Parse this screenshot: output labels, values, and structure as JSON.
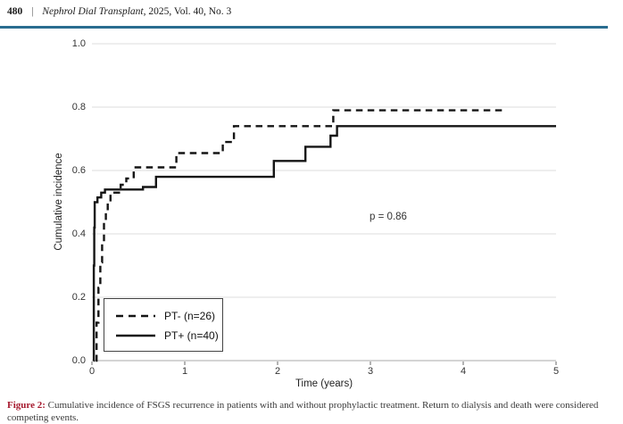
{
  "header": {
    "page_number": "480",
    "separator": "|",
    "journal_title": "Nephrol Dial Transplant",
    "journal_meta": ", 2025, Vol. 40, No. 3"
  },
  "chart_data": {
    "type": "line",
    "variant": "step-cumulative-incidence",
    "title": "",
    "xlabel": "Time (years)",
    "ylabel": "Cumulative incidence",
    "xlim": [
      0,
      5
    ],
    "ylim": [
      0.0,
      1.0
    ],
    "x_ticks": [
      "0",
      "1",
      "2",
      "3",
      "4",
      "5"
    ],
    "y_ticks": [
      "0.0",
      "0.2",
      "0.4",
      "0.6",
      "0.8",
      "1.0"
    ],
    "grid": "horizontal",
    "legend_position": "lower-left",
    "annotation": "p = 0.86",
    "annotation_at": {
      "x_years": 3.2,
      "y_value": 0.45
    },
    "series": [
      {
        "name": "PT- (n=26)",
        "line_style": "dashed",
        "color": "#151515",
        "t_start": 0.04,
        "t_end": 4.45,
        "steps": [
          [
            0.05,
            0.12
          ],
          [
            0.07,
            0.23
          ],
          [
            0.09,
            0.31
          ],
          [
            0.11,
            0.38
          ],
          [
            0.13,
            0.44
          ],
          [
            0.15,
            0.47
          ],
          [
            0.17,
            0.5
          ],
          [
            0.2,
            0.53
          ],
          [
            0.31,
            0.555
          ],
          [
            0.37,
            0.575
          ],
          [
            0.45,
            0.61
          ],
          [
            0.91,
            0.655
          ],
          [
            1.41,
            0.69
          ],
          [
            1.53,
            0.74
          ],
          [
            2.6,
            0.79
          ]
        ]
      },
      {
        "name": "PT+ (n=40)",
        "line_style": "solid",
        "color": "#151515",
        "t_start": 0.015,
        "t_end": 5.0,
        "steps": [
          [
            0.02,
            0.3
          ],
          [
            0.025,
            0.42
          ],
          [
            0.03,
            0.5
          ],
          [
            0.06,
            0.515
          ],
          [
            0.1,
            0.53
          ],
          [
            0.14,
            0.54
          ],
          [
            0.55,
            0.548
          ],
          [
            0.69,
            0.58
          ],
          [
            1.96,
            0.63
          ],
          [
            2.3,
            0.675
          ],
          [
            2.57,
            0.71
          ],
          [
            2.64,
            0.74
          ]
        ]
      }
    ]
  },
  "caption": {
    "label": "Figure 2:",
    "text": " Cumulative incidence of FSGS recurrence in patients with and without prophylactic treatment. Return to dialysis and death were considered competing events."
  }
}
